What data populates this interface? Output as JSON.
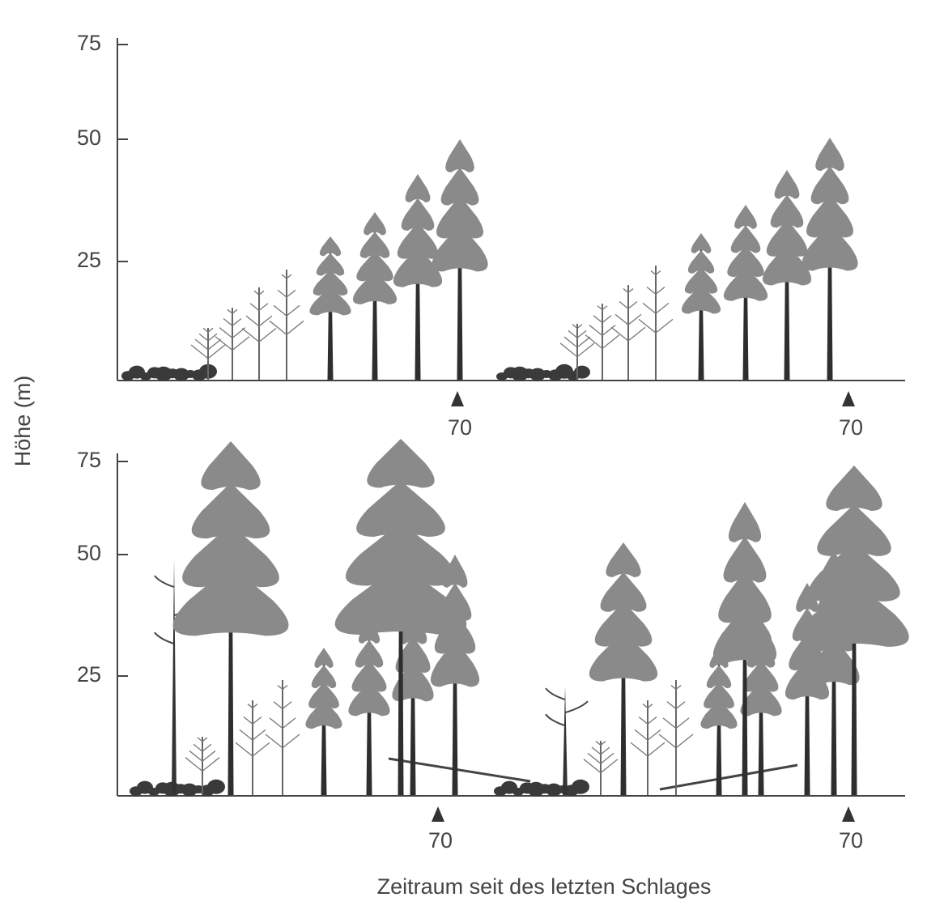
{
  "y_axis_label": "Höhe (m)",
  "x_axis_label": "Zeitraum seit des letzten Schlages",
  "panels": [
    {
      "yticks": [
        75,
        50,
        25
      ],
      "markers": [
        70,
        70
      ]
    },
    {
      "yticks": [
        75,
        50,
        25
      ],
      "markers": [
        70,
        70
      ]
    }
  ]
}
